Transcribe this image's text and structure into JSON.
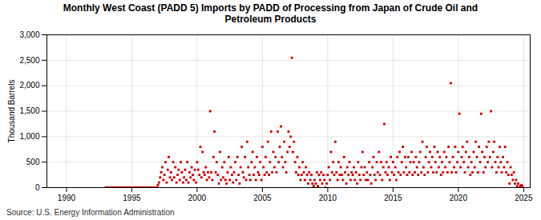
{
  "chart_data": {
    "type": "scatter",
    "title": "Monthly West Coast (PADD 5) Imports by PADD of Processing from Japan of Crude Oil and\nPetroleum Products",
    "ylabel": "Thousand Barrels",
    "source": "Source: U.S. Energy Information Administration",
    "color": "#cc0000",
    "marker": "square",
    "grid": true,
    "xlim": [
      1988.5,
      2025.5
    ],
    "xticks": [
      1990,
      1995,
      2000,
      2005,
      2010,
      2015,
      2020,
      2025
    ],
    "ylim": [
      0,
      3000
    ],
    "yticks": [
      0,
      500,
      {
        "value": 1000,
        "label": "1,000"
      },
      {
        "value": 1500,
        "label": "1,500"
      },
      {
        "value": 2000,
        "label": "2,000"
      },
      {
        "value": 2500,
        "label": "2,500"
      },
      {
        "value": 3000,
        "label": "3,000"
      }
    ],
    "x": [
      1993.0,
      1993.08,
      1993.17,
      1993.25,
      1993.33,
      1993.42,
      1993.5,
      1993.58,
      1993.67,
      1993.75,
      1993.83,
      1993.92,
      1994.0,
      1994.08,
      1994.17,
      1994.25,
      1994.33,
      1994.42,
      1994.5,
      1994.58,
      1994.67,
      1994.75,
      1994.83,
      1994.92,
      1995.0,
      1995.08,
      1995.17,
      1995.25,
      1995.33,
      1995.42,
      1995.5,
      1995.58,
      1995.67,
      1995.75,
      1995.83,
      1995.92,
      1996.0,
      1996.08,
      1996.17,
      1996.25,
      1996.33,
      1996.42,
      1996.5,
      1996.58,
      1996.67,
      1996.75,
      1996.83,
      1996.92,
      1997.0,
      1997.08,
      1997.17,
      1997.25,
      1997.33,
      1997.42,
      1997.5,
      1997.58,
      1997.67,
      1997.75,
      1997.83,
      1997.92,
      1998.0,
      1998.08,
      1998.17,
      1998.25,
      1998.33,
      1998.42,
      1998.5,
      1998.58,
      1998.67,
      1998.75,
      1998.83,
      1998.92,
      1999.0,
      1999.08,
      1999.17,
      1999.25,
      1999.33,
      1999.42,
      1999.5,
      1999.58,
      1999.67,
      1999.75,
      1999.83,
      1999.92,
      2000.0,
      2000.08,
      2000.17,
      2000.25,
      2000.33,
      2000.42,
      2000.5,
      2000.58,
      2000.67,
      2000.75,
      2000.83,
      2000.92,
      2001.0,
      2001.08,
      2001.17,
      2001.25,
      2001.33,
      2001.42,
      2001.5,
      2001.58,
      2001.67,
      2001.75,
      2001.83,
      2001.92,
      2002.0,
      2002.08,
      2002.17,
      2002.25,
      2002.33,
      2002.42,
      2002.5,
      2002.58,
      2002.67,
      2002.75,
      2002.83,
      2002.92,
      2003.0,
      2003.08,
      2003.17,
      2003.25,
      2003.33,
      2003.42,
      2003.5,
      2003.58,
      2003.67,
      2003.75,
      2003.83,
      2003.92,
      2004.0,
      2004.08,
      2004.17,
      2004.25,
      2004.33,
      2004.42,
      2004.5,
      2004.58,
      2004.67,
      2004.75,
      2004.83,
      2004.92,
      2005.0,
      2005.08,
      2005.17,
      2005.25,
      2005.33,
      2005.42,
      2005.5,
      2005.58,
      2005.67,
      2005.75,
      2005.83,
      2005.92,
      2006.0,
      2006.08,
      2006.17,
      2006.25,
      2006.33,
      2006.42,
      2006.5,
      2006.58,
      2006.67,
      2006.75,
      2006.83,
      2006.92,
      2007.0,
      2007.08,
      2007.17,
      2007.25,
      2007.33,
      2007.42,
      2007.5,
      2007.58,
      2007.67,
      2007.75,
      2007.83,
      2007.92,
      2008.0,
      2008.08,
      2008.17,
      2008.25,
      2008.33,
      2008.42,
      2008.5,
      2008.58,
      2008.67,
      2008.75,
      2008.83,
      2008.92,
      2009.0,
      2009.08,
      2009.17,
      2009.25,
      2009.33,
      2009.42,
      2009.5,
      2009.58,
      2009.67,
      2009.75,
      2009.83,
      2009.92,
      2010.0,
      2010.08,
      2010.17,
      2010.25,
      2010.33,
      2010.42,
      2010.5,
      2010.58,
      2010.67,
      2010.75,
      2010.83,
      2010.92,
      2011.0,
      2011.08,
      2011.17,
      2011.25,
      2011.33,
      2011.42,
      2011.5,
      2011.58,
      2011.67,
      2011.75,
      2011.83,
      2011.92,
      2012.0,
      2012.08,
      2012.17,
      2012.25,
      2012.33,
      2012.42,
      2012.5,
      2012.58,
      2012.67,
      2012.75,
      2012.83,
      2012.92,
      2013.0,
      2013.08,
      2013.17,
      2013.25,
      2013.33,
      2013.42,
      2013.5,
      2013.58,
      2013.67,
      2013.75,
      2013.83,
      2013.92,
      2014.0,
      2014.08,
      2014.17,
      2014.25,
      2014.33,
      2014.42,
      2014.5,
      2014.58,
      2014.67,
      2014.75,
      2014.83,
      2014.92,
      2015.0,
      2015.08,
      2015.17,
      2015.25,
      2015.33,
      2015.42,
      2015.5,
      2015.58,
      2015.67,
      2015.75,
      2015.83,
      2015.92,
      2016.0,
      2016.08,
      2016.17,
      2016.25,
      2016.33,
      2016.42,
      2016.5,
      2016.58,
      2016.67,
      2016.75,
      2016.83,
      2016.92,
      2017.0,
      2017.08,
      2017.17,
      2017.25,
      2017.33,
      2017.42,
      2017.5,
      2017.58,
      2017.67,
      2017.75,
      2017.83,
      2017.92,
      2018.0,
      2018.08,
      2018.17,
      2018.25,
      2018.33,
      2018.42,
      2018.5,
      2018.58,
      2018.67,
      2018.75,
      2018.83,
      2018.92,
      2019.0,
      2019.08,
      2019.17,
      2019.25,
      2019.33,
      2019.42,
      2019.5,
      2019.58,
      2019.67,
      2019.75,
      2019.83,
      2019.92,
      2020.0,
      2020.08,
      2020.17,
      2020.25,
      2020.33,
      2020.42,
      2020.5,
      2020.58,
      2020.67,
      2020.75,
      2020.83,
      2020.92,
      2021.0,
      2021.08,
      2021.17,
      2021.25,
      2021.33,
      2021.42,
      2021.5,
      2021.58,
      2021.67,
      2021.75,
      2021.83,
      2021.92,
      2022.0,
      2022.08,
      2022.17,
      2022.25,
      2022.33,
      2022.42,
      2022.5,
      2022.58,
      2022.67,
      2022.75,
      2022.83,
      2022.92,
      2023.0,
      2023.08,
      2023.17,
      2023.25,
      2023.33,
      2023.42,
      2023.5,
      2023.58,
      2023.67,
      2023.75,
      2023.83,
      2023.92,
      2024.0,
      2024.08,
      2024.17,
      2024.25,
      2024.33,
      2024.42,
      2024.5,
      2024.58,
      2024.67,
      2024.75,
      2024.83,
      2024.92
    ],
    "values": [
      0,
      0,
      0,
      0,
      0,
      0,
      0,
      0,
      0,
      0,
      0,
      0,
      0,
      0,
      0,
      0,
      0,
      0,
      0,
      0,
      0,
      0,
      0,
      0,
      0,
      0,
      0,
      0,
      0,
      0,
      0,
      0,
      0,
      0,
      0,
      0,
      0,
      0,
      0,
      0,
      0,
      0,
      0,
      0,
      0,
      0,
      0,
      0,
      50,
      100,
      200,
      300,
      400,
      150,
      250,
      500,
      100,
      350,
      600,
      200,
      300,
      150,
      500,
      200,
      400,
      100,
      250,
      350,
      150,
      500,
      300,
      100,
      200,
      350,
      150,
      500,
      100,
      300,
      200,
      400,
      250,
      150,
      350,
      100,
      500,
      350,
      250,
      800,
      200,
      700,
      300,
      250,
      400,
      150,
      300,
      200,
      1500,
      300,
      150,
      600,
      1100,
      300,
      500,
      250,
      80,
      700,
      150,
      400,
      200,
      500,
      150,
      80,
      300,
      600,
      150,
      400,
      250,
      100,
      300,
      500,
      150,
      600,
      250,
      80,
      400,
      800,
      300,
      200,
      600,
      150,
      900,
      400,
      250,
      150,
      500,
      700,
      250,
      400,
      150,
      600,
      300,
      250,
      500,
      150,
      800,
      400,
      250,
      600,
      300,
      900,
      250,
      500,
      1100,
      300,
      700,
      400,
      600,
      300,
      1100,
      500,
      800,
      1200,
      600,
      400,
      900,
      500,
      300,
      700,
      1100,
      800,
      1000,
      2550,
      700,
      900,
      500,
      300,
      600,
      250,
      400,
      150,
      250,
      500,
      300,
      150,
      400,
      250,
      80,
      300,
      150,
      250,
      80,
      30,
      150,
      80,
      300,
      30,
      250,
      150,
      300,
      80,
      250,
      150,
      0,
      80,
      250,
      400,
      150,
      700,
      300,
      500,
      250,
      900,
      300,
      150,
      500,
      250,
      400,
      250,
      150,
      600,
      300,
      80,
      400,
      250,
      500,
      150,
      300,
      250,
      400,
      150,
      300,
      80,
      500,
      250,
      150,
      400,
      700,
      250,
      400,
      150,
      300,
      150,
      500,
      250,
      80,
      400,
      600,
      250,
      150,
      500,
      300,
      700,
      250,
      500,
      150,
      400,
      1250,
      300,
      500,
      250,
      400,
      150,
      600,
      300,
      500,
      250,
      400,
      150,
      600,
      300,
      700,
      250,
      500,
      800,
      300,
      600,
      400,
      250,
      600,
      300,
      500,
      700,
      250,
      500,
      300,
      600,
      400,
      250,
      500,
      700,
      300,
      900,
      400,
      250,
      600,
      800,
      300,
      500,
      700,
      400,
      600,
      300,
      800,
      500,
      300,
      700,
      400,
      600,
      250,
      500,
      300,
      700,
      400,
      600,
      300,
      800,
      500,
      2050,
      300,
      600,
      400,
      800,
      300,
      500,
      700,
      1450,
      400,
      600,
      800,
      500,
      300,
      700,
      900,
      400,
      600,
      250,
      500,
      300,
      700,
      400,
      900,
      600,
      300,
      800,
      500,
      1450,
      700,
      300,
      600,
      400,
      800,
      500,
      900,
      600,
      1500,
      400,
      700,
      900,
      500,
      300,
      600,
      400,
      800,
      500,
      300,
      600,
      400,
      800,
      300,
      500,
      250,
      80,
      400,
      250,
      150,
      300,
      80,
      150,
      30,
      80,
      0,
      30,
      50,
      20
    ]
  }
}
